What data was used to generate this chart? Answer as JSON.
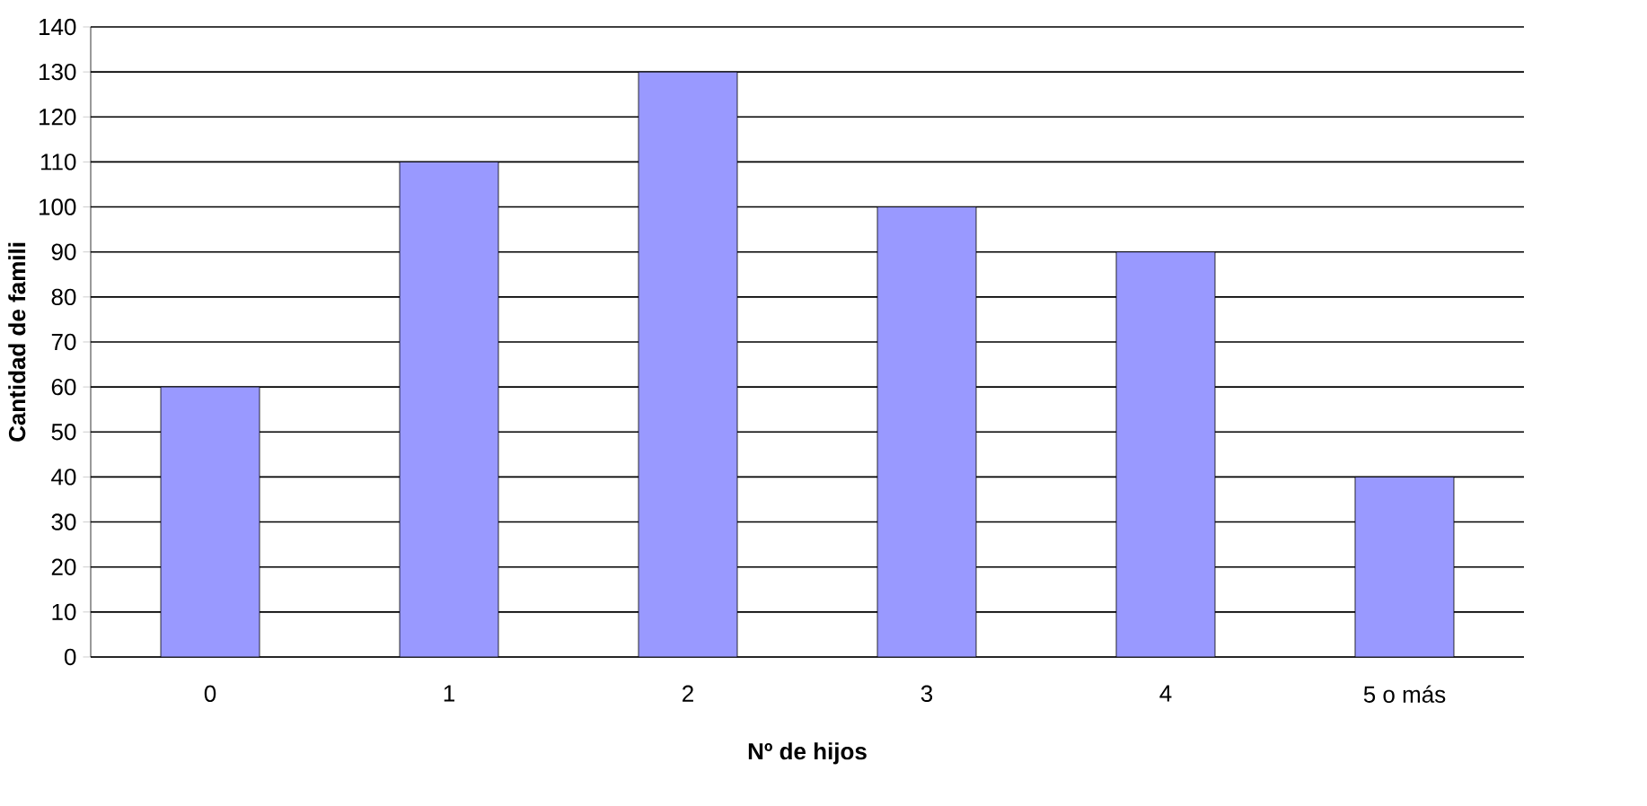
{
  "chart_data": {
    "type": "bar",
    "xlabel": "Nº de hijos",
    "ylabel": "Cantidad de famili",
    "categories": [
      "0",
      "1",
      "2",
      "3",
      "4",
      "5 o más"
    ],
    "values": [
      60,
      110,
      130,
      100,
      90,
      40
    ],
    "color": "#9999ff",
    "ylim": [
      0,
      140
    ],
    "yticks": [
      0,
      10,
      20,
      30,
      40,
      50,
      60,
      70,
      80,
      90,
      100,
      110,
      120,
      130,
      140
    ],
    "grid": "y"
  }
}
